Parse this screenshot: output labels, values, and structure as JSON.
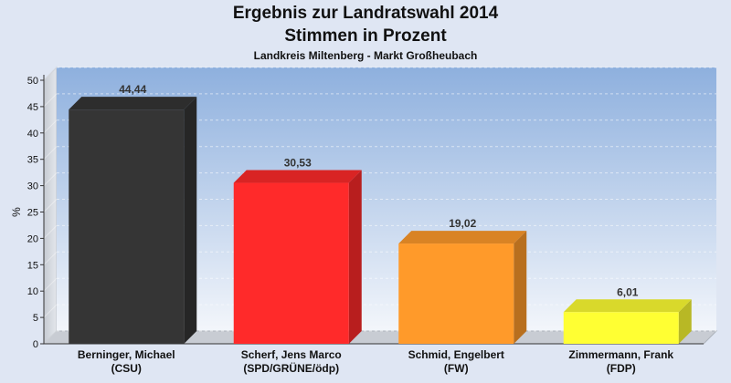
{
  "title": "Ergebnis zur Landratswahl 2014",
  "subtitle": "Stimmen in Prozent",
  "subtitle2": "Landkreis Miltenberg - Markt Großheubach",
  "chart_data": {
    "type": "bar",
    "title": "Ergebnis zur Landratswahl 2014",
    "subtitle": "Stimmen in Prozent",
    "ylabel": "%",
    "ylim": [
      0,
      50
    ],
    "yticks": [
      0,
      5,
      10,
      15,
      20,
      25,
      30,
      35,
      40,
      45,
      50
    ],
    "grid": true,
    "categories": [
      [
        "Berninger, Michael",
        "(CSU)"
      ],
      [
        "Scherf, Jens Marco",
        "(SPD/GRÜNE/ödp)"
      ],
      [
        "Schmid, Engelbert",
        "(FW)"
      ],
      [
        "Zimmermann, Frank",
        "(FDP)"
      ]
    ],
    "values": [
      44.44,
      30.53,
      19.02,
      6.01
    ],
    "value_labels": [
      "44,44",
      "30,53",
      "19,02",
      "6,01"
    ],
    "colors": [
      "#353535",
      "#ff2a2a",
      "#ff9a2a",
      "#ffff33"
    ]
  }
}
